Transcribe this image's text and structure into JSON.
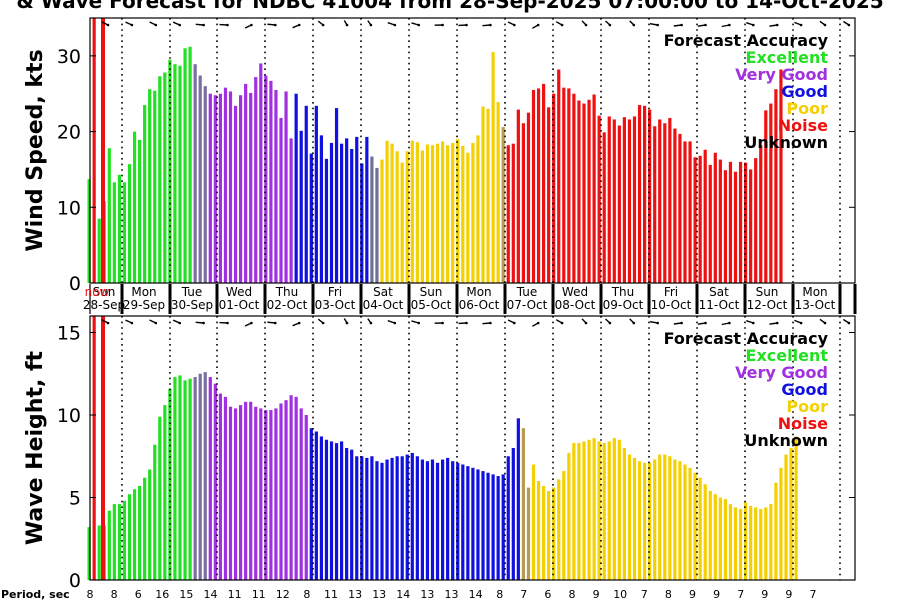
{
  "title": "& Wave Forecast for NDBC 41004 from 28-Sep-2025 07:00:00 to 14-Oct-2025",
  "period_label": "Period, sec",
  "period_values": [
    "8",
    "8",
    "6",
    "16",
    "15",
    "14",
    "11",
    "11",
    "12",
    "8",
    "11",
    "13",
    "13",
    "14",
    "13",
    "13",
    "14",
    "8",
    "7",
    "6",
    "8",
    "9",
    "10",
    "7",
    "8",
    "9",
    "9",
    "7",
    "9",
    "9",
    "7"
  ],
  "legend": {
    "title": "Forecast Accuracy",
    "items": [
      {
        "label": "Excellent",
        "color": "#22e022"
      },
      {
        "label": "Very Good",
        "color": "#a030e0"
      },
      {
        "label": "Good",
        "color": "#1010e0"
      },
      {
        "label": "Poor",
        "color": "#f5d000"
      },
      {
        "label": "Noise",
        "color": "#ee1111"
      },
      {
        "label": "Unknown",
        "color": "#000000"
      }
    ]
  },
  "chart_data": [
    {
      "type": "bar",
      "ylabel": "Wind Speed, kts",
      "ylim": [
        0,
        35
      ],
      "yticks": [
        0,
        10,
        20,
        30
      ],
      "day_labels": [
        "Sun",
        "Mon",
        "Tue",
        "Wed",
        "Thu",
        "Fri",
        "Sat",
        "Sun",
        "Mon",
        "Tue",
        "Wed",
        "Thu",
        "Fri",
        "Sat",
        "Sun",
        "Mon"
      ],
      "date_labels": [
        "28-Sep",
        "29-Sep",
        "30-Sep",
        "01-Oct",
        "02-Oct",
        "03-Oct",
        "04-Oct",
        "05-Oct",
        "06-Oct",
        "07-Oct",
        "08-Oct",
        "09-Oct",
        "10-Oct",
        "11-Oct",
        "12-Oct",
        "13-Oct"
      ],
      "now_label": "now",
      "values": [
        13.7,
        35,
        8.5,
        10.8,
        17.8,
        13.3,
        14.3,
        13.3,
        15.7,
        20.0,
        18.9,
        23.5,
        25.6,
        25.4,
        27.3,
        27.8,
        29.5,
        28.9,
        28.7,
        31.0,
        31.2,
        28.9,
        27.4,
        26.0,
        25.0,
        24.8,
        25.0,
        25.8,
        25.3,
        23.4,
        24.8,
        26.3,
        25.1,
        27.2,
        29.0,
        27.4,
        26.7,
        25.5,
        21.8,
        25.3,
        19.1,
        25.0,
        20.1,
        23.4,
        17.1,
        23.4,
        19.5,
        16.4,
        18.5,
        23.1,
        18.4,
        19.1,
        17.7,
        19.3,
        15.8,
        19.3,
        16.7,
        15.2,
        16.3,
        18.8,
        18.4,
        17.4,
        15.9,
        17.4,
        18.8,
        18.6,
        17.5,
        18.3,
        18.2,
        18.4,
        18.7,
        18.2,
        18.5,
        19.0,
        18.1,
        17.2,
        18.5,
        19.5,
        23.3,
        23.0,
        30.5,
        23.9,
        20.6,
        18.2,
        18.4,
        22.9,
        21.1,
        22.5,
        25.5,
        25.7,
        26.3,
        23.2,
        25.0,
        28.2,
        25.8,
        25.7,
        25.0,
        24.1,
        23.7,
        24.2,
        24.9,
        22.1,
        19.9,
        22.0,
        21.6,
        20.8,
        21.9,
        21.6,
        22.0,
        23.5,
        23.4,
        22.9,
        20.7,
        21.6,
        21.1,
        21.8,
        20.4,
        19.7,
        18.7,
        18.7,
        16.6,
        16.8,
        17.6,
        15.6,
        17.2,
        16.3,
        14.9,
        16.0,
        14.7,
        16.0,
        15.9,
        15.0,
        16.5,
        18.2,
        22.8,
        23.7,
        25.6,
        28.2
      ]
    },
    {
      "type": "bar",
      "ylabel": "Wave Height, ft",
      "ylim": [
        0,
        16
      ],
      "yticks": [
        0,
        5,
        10,
        15
      ],
      "values": [
        3.2,
        16,
        3.3,
        3.3,
        4.2,
        4.6,
        4.6,
        4.8,
        5.2,
        5.5,
        5.7,
        6.2,
        6.7,
        8.2,
        9.9,
        10.6,
        11.6,
        12.3,
        12.4,
        12.1,
        12.2,
        12.3,
        12.5,
        12.6,
        12.3,
        11.9,
        11.3,
        11.1,
        10.5,
        10.4,
        10.6,
        10.8,
        10.8,
        10.5,
        10.4,
        10.3,
        10.3,
        10.4,
        10.7,
        10.9,
        11.2,
        11.1,
        10.4,
        10.0,
        9.2,
        9.0,
        8.7,
        8.5,
        8.4,
        8.3,
        8.4,
        8.0,
        7.9,
        7.5,
        7.5,
        7.4,
        7.5,
        7.2,
        7.1,
        7.3,
        7.4,
        7.5,
        7.5,
        7.6,
        7.7,
        7.5,
        7.3,
        7.2,
        7.3,
        7.1,
        7.3,
        7.4,
        7.2,
        7.1,
        7.0,
        6.9,
        6.8,
        6.7,
        6.6,
        6.5,
        6.4,
        6.3,
        6.4,
        7.5,
        8.0,
        9.8,
        9.2,
        5.6,
        7.0,
        6.0,
        5.7,
        5.4,
        5.6,
        6.1,
        6.6,
        7.7,
        8.3,
        8.3,
        8.4,
        8.5,
        8.6,
        8.4,
        8.3,
        8.4,
        8.6,
        8.5,
        8.0,
        7.6,
        7.4,
        7.2,
        7.1,
        7.1,
        7.3,
        7.6,
        7.6,
        7.5,
        7.3,
        7.2,
        7.0,
        6.8,
        6.5,
        6.2,
        5.8,
        5.4,
        5.2,
        5.0,
        4.9,
        4.6,
        4.4,
        4.3,
        4.7,
        4.5,
        4.4,
        4.3,
        4.4,
        4.6,
        5.9,
        6.8,
        7.6,
        8.0,
        8.7
      ]
    }
  ]
}
